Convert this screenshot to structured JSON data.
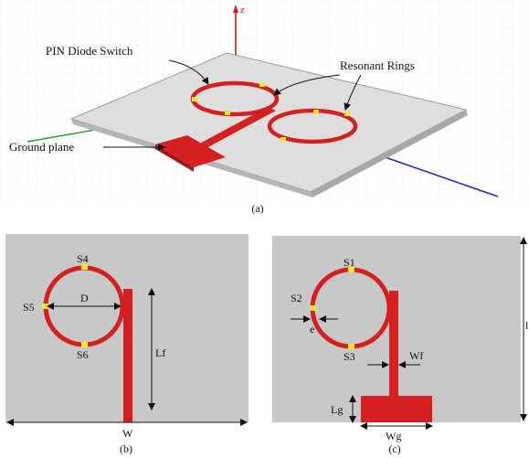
{
  "panel_a": {
    "caption": "(a)",
    "axis_label": "z",
    "callouts": {
      "pin_diode": "PIN Diode Switch",
      "resonant_rings": "Resonant Rings",
      "ground_plane": "Ground plane"
    }
  },
  "panel_b": {
    "caption": "(b)",
    "switches": [
      "S4",
      "S5",
      "S6"
    ],
    "dims": {
      "ring_diameter": "D",
      "feed_length": "Lf",
      "width": "W"
    }
  },
  "panel_c": {
    "caption": "(c)",
    "switches": [
      "S1",
      "S2",
      "S3"
    ],
    "dims": {
      "ring_thickness": "e",
      "feed_width": "Wf",
      "ground_length": "Lg",
      "ground_width": "Wg",
      "length": "l"
    }
  },
  "colors": {
    "conductor": "#d42020",
    "switch": "#f2e62a",
    "substrate": "#c8c8c8",
    "plane_3d": "#dedede",
    "axis_z": "#c82020",
    "axis_y": "#2a9a2a",
    "axis_x": "#2030b0"
  }
}
